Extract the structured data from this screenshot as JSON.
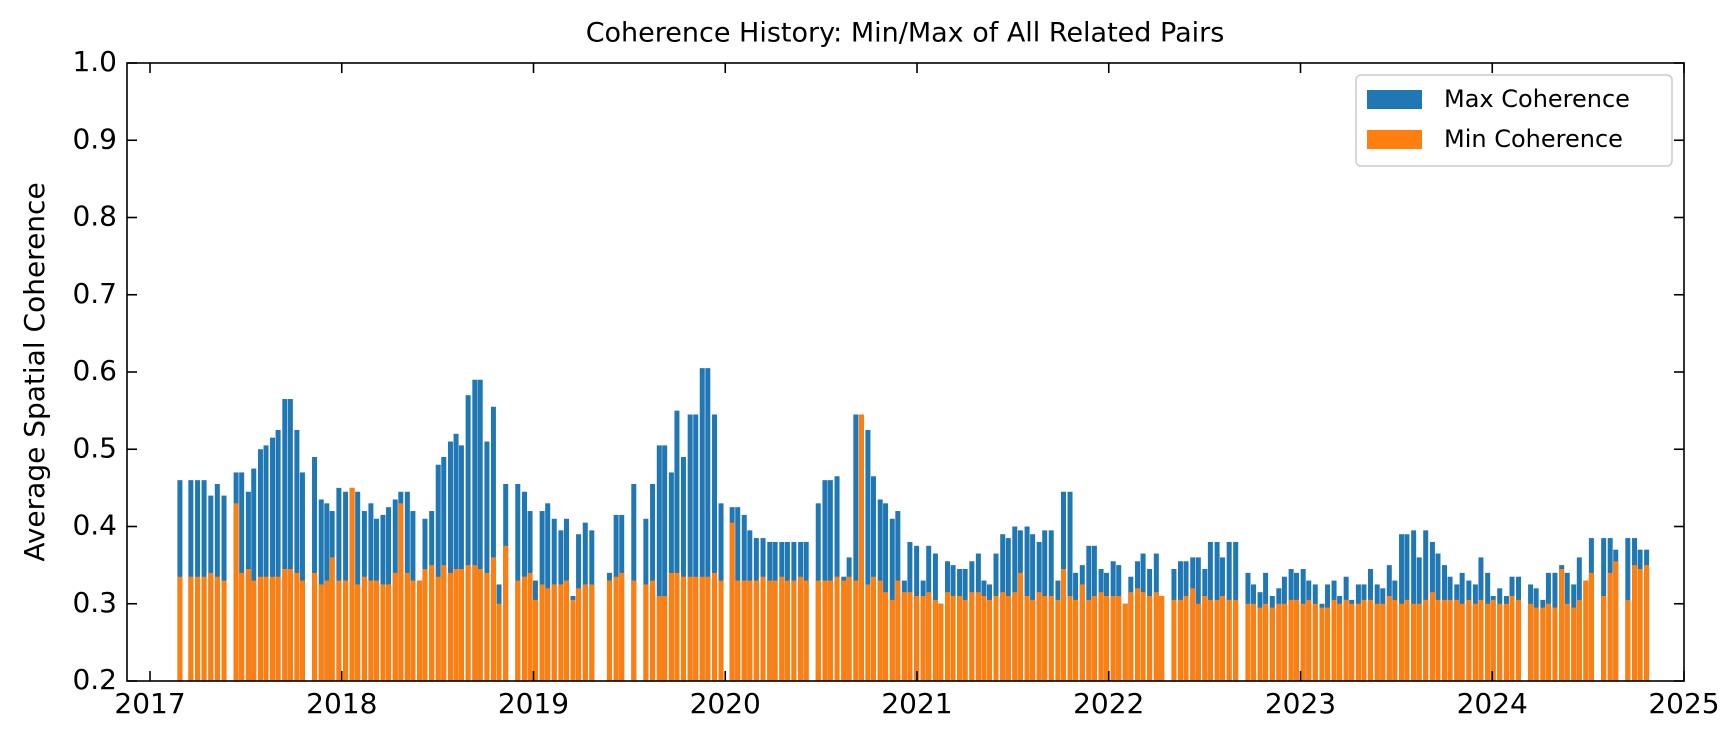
{
  "chart_data": {
    "type": "bar",
    "title": "Coherence History: Min/Max of All Related Pairs",
    "ylabel": "Average Spatial Coherence",
    "xlim": [
      2016.88,
      2025.0
    ],
    "xticks": [
      2017,
      2018,
      2019,
      2020,
      2021,
      2022,
      2023,
      2024,
      2025
    ],
    "ylim": [
      0.2,
      1.0
    ],
    "yticks": [
      0.2,
      0.3,
      0.4,
      0.5,
      0.6,
      0.7,
      0.8,
      0.9,
      {
        "value": 1.0,
        "label": "1.0"
      }
    ],
    "grid": false,
    "legend": "upper right",
    "x": [
      2017.156,
      2017.213,
      2017.248,
      2017.282,
      2017.317,
      2017.351,
      2017.386,
      2017.449,
      2017.478,
      2017.513,
      2017.541,
      2017.576,
      2017.605,
      2017.639,
      2017.668,
      2017.703,
      2017.732,
      2017.766,
      2017.795,
      2017.858,
      2017.893,
      2017.922,
      2017.95,
      2017.985,
      2018.02,
      2018.054,
      2018.083,
      2018.118,
      2018.152,
      2018.181,
      2018.215,
      2018.244,
      2018.279,
      2018.308,
      2018.342,
      2018.371,
      2018.406,
      2018.434,
      2018.469,
      2018.503,
      2018.532,
      2018.567,
      2018.596,
      2018.624,
      2018.659,
      2018.694,
      2018.722,
      2018.757,
      2018.791,
      2018.82,
      2018.855,
      2018.918,
      2018.953,
      2018.982,
      2019.01,
      2019.045,
      2019.074,
      2019.108,
      2019.143,
      2019.172,
      2019.206,
      2019.235,
      2019.27,
      2019.304,
      2019.396,
      2019.431,
      2019.46,
      2019.523,
      2019.586,
      2019.621,
      2019.656,
      2019.684,
      2019.719,
      2019.748,
      2019.782,
      2019.817,
      2019.846,
      2019.88,
      2019.909,
      2019.944,
      2019.978,
      2020.036,
      2020.065,
      2020.099,
      2020.128,
      2020.162,
      2020.197,
      2020.232,
      2020.26,
      2020.295,
      2020.324,
      2020.358,
      2020.393,
      2020.422,
      2020.485,
      2020.52,
      2020.548,
      2020.583,
      2020.618,
      2020.646,
      2020.681,
      2020.71,
      2020.744,
      2020.773,
      2020.808,
      2020.836,
      2020.871,
      2020.9,
      2020.934,
      2020.963,
      2020.998,
      2021.032,
      2021.061,
      2021.096,
      2021.124,
      2021.159,
      2021.188,
      2021.222,
      2021.251,
      2021.286,
      2021.32,
      2021.349,
      2021.378,
      2021.412,
      2021.447,
      2021.476,
      2021.51,
      2021.539,
      2021.574,
      2021.603,
      2021.637,
      2021.666,
      2021.7,
      2021.735,
      2021.764,
      2021.798,
      2021.827,
      2021.862,
      2021.896,
      2021.925,
      2021.96,
      2021.988,
      2022.023,
      2022.052,
      2022.086,
      2022.115,
      2022.15,
      2022.179,
      2022.213,
      2022.248,
      2022.276,
      2022.34,
      2022.374,
      2022.403,
      2022.438,
      2022.467,
      2022.501,
      2022.53,
      2022.565,
      2022.593,
      2022.628,
      2022.662,
      2022.726,
      2022.755,
      2022.789,
      2022.818,
      2022.853,
      2022.887,
      2022.916,
      2022.951,
      2022.979,
      2023.014,
      2023.043,
      2023.077,
      2023.112,
      2023.141,
      2023.175,
      2023.204,
      2023.238,
      2023.267,
      2023.302,
      2023.331,
      2023.365,
      2023.4,
      2023.429,
      2023.463,
      2023.492,
      2023.527,
      2023.555,
      2023.59,
      2023.619,
      2023.653,
      2023.688,
      2023.717,
      2023.751,
      2023.78,
      2023.815,
      2023.843,
      2023.878,
      2023.912,
      2023.941,
      2023.976,
      2024.005,
      2024.039,
      2024.074,
      2024.103,
      2024.137,
      2024.2,
      2024.229,
      2024.264,
      2024.293,
      2024.327,
      2024.362,
      2024.391,
      2024.425,
      2024.454,
      2024.488,
      2024.517,
      2024.581,
      2024.615,
      2024.644,
      2024.707,
      2024.742,
      2024.771,
      2024.805
    ],
    "series": [
      {
        "name": "Max Coherence",
        "color": "#1f77b4",
        "values": [
          0.46,
          0.46,
          0.46,
          0.46,
          0.44,
          0.455,
          0.44,
          0.47,
          0.47,
          0.445,
          0.475,
          0.5,
          0.505,
          0.515,
          0.525,
          0.565,
          0.565,
          0.525,
          0.47,
          0.49,
          0.435,
          0.43,
          0.42,
          0.45,
          0.445,
          0.45,
          0.445,
          0.42,
          0.43,
          0.41,
          0.415,
          0.425,
          0.435,
          0.445,
          0.445,
          0.42,
          0.33,
          0.41,
          0.42,
          0.48,
          0.49,
          0.51,
          0.52,
          0.505,
          0.57,
          0.59,
          0.59,
          0.51,
          0.555,
          0.325,
          0.455,
          0.455,
          0.445,
          0.42,
          0.33,
          0.42,
          0.43,
          0.41,
          0.395,
          0.41,
          0.31,
          0.39,
          0.405,
          0.395,
          0.34,
          0.415,
          0.415,
          0.455,
          0.41,
          0.455,
          0.505,
          0.505,
          0.47,
          0.55,
          0.49,
          0.545,
          0.545,
          0.605,
          0.605,
          0.545,
          0.43,
          0.425,
          0.425,
          0.415,
          0.395,
          0.385,
          0.385,
          0.38,
          0.38,
          0.38,
          0.38,
          0.38,
          0.38,
          0.38,
          0.43,
          0.46,
          0.46,
          0.465,
          0.335,
          0.36,
          0.545,
          0.545,
          0.525,
          0.465,
          0.435,
          0.43,
          0.41,
          0.42,
          0.33,
          0.38,
          0.375,
          0.33,
          0.375,
          0.365,
          0.3,
          0.355,
          0.35,
          0.345,
          0.345,
          0.355,
          0.365,
          0.33,
          0.325,
          0.365,
          0.39,
          0.385,
          0.4,
          0.395,
          0.4,
          0.39,
          0.38,
          0.395,
          0.395,
          0.33,
          0.445,
          0.445,
          0.34,
          0.35,
          0.375,
          0.375,
          0.345,
          0.34,
          0.355,
          0.35,
          0.3,
          0.335,
          0.355,
          0.365,
          0.345,
          0.365,
          0.31,
          0.345,
          0.355,
          0.355,
          0.36,
          0.36,
          0.345,
          0.38,
          0.38,
          0.36,
          0.38,
          0.38,
          0.34,
          0.325,
          0.315,
          0.34,
          0.31,
          0.32,
          0.335,
          0.345,
          0.34,
          0.345,
          0.33,
          0.325,
          0.3,
          0.325,
          0.33,
          0.31,
          0.335,
          0.305,
          0.325,
          0.325,
          0.345,
          0.325,
          0.32,
          0.35,
          0.33,
          0.39,
          0.39,
          0.395,
          0.36,
          0.395,
          0.38,
          0.365,
          0.35,
          0.335,
          0.325,
          0.34,
          0.33,
          0.325,
          0.36,
          0.34,
          0.31,
          0.32,
          0.31,
          0.335,
          0.335,
          0.325,
          0.32,
          0.305,
          0.34,
          0.34,
          0.35,
          0.34,
          0.325,
          0.36,
          0.33,
          0.385,
          0.385,
          0.385,
          0.37,
          0.385,
          0.385,
          0.37,
          0.37
        ]
      },
      {
        "name": "Min Coherence",
        "color": "#ff7f0e",
        "values": [
          0.335,
          0.335,
          0.335,
          0.335,
          0.34,
          0.335,
          0.33,
          0.43,
          0.34,
          0.345,
          0.33,
          0.335,
          0.335,
          0.335,
          0.335,
          0.345,
          0.345,
          0.34,
          0.33,
          0.34,
          0.325,
          0.33,
          0.36,
          0.33,
          0.33,
          0.45,
          0.325,
          0.335,
          0.33,
          0.33,
          0.325,
          0.325,
          0.34,
          0.43,
          0.34,
          0.33,
          0.33,
          0.345,
          0.35,
          0.335,
          0.35,
          0.34,
          0.345,
          0.345,
          0.35,
          0.35,
          0.345,
          0.34,
          0.36,
          0.3,
          0.375,
          0.33,
          0.335,
          0.34,
          0.305,
          0.325,
          0.32,
          0.325,
          0.325,
          0.33,
          0.305,
          0.32,
          0.325,
          0.325,
          0.33,
          0.335,
          0.34,
          0.33,
          0.325,
          0.33,
          0.31,
          0.31,
          0.34,
          0.34,
          0.335,
          0.335,
          0.335,
          0.335,
          0.335,
          0.34,
          0.33,
          0.405,
          0.33,
          0.33,
          0.33,
          0.33,
          0.335,
          0.33,
          0.33,
          0.335,
          0.33,
          0.33,
          0.335,
          0.33,
          0.33,
          0.33,
          0.33,
          0.335,
          0.33,
          0.335,
          0.33,
          0.545,
          0.325,
          0.335,
          0.33,
          0.315,
          0.305,
          0.33,
          0.315,
          0.315,
          0.31,
          0.31,
          0.315,
          0.305,
          0.3,
          0.315,
          0.31,
          0.31,
          0.305,
          0.315,
          0.315,
          0.31,
          0.305,
          0.31,
          0.315,
          0.31,
          0.315,
          0.34,
          0.31,
          0.305,
          0.315,
          0.31,
          0.31,
          0.305,
          0.345,
          0.31,
          0.305,
          0.325,
          0.305,
          0.31,
          0.315,
          0.31,
          0.31,
          0.31,
          0.3,
          0.315,
          0.32,
          0.315,
          0.31,
          0.315,
          0.31,
          0.305,
          0.305,
          0.31,
          0.32,
          0.3,
          0.31,
          0.305,
          0.305,
          0.31,
          0.305,
          0.305,
          0.3,
          0.3,
          0.295,
          0.3,
          0.295,
          0.3,
          0.3,
          0.305,
          0.305,
          0.3,
          0.305,
          0.3,
          0.295,
          0.295,
          0.305,
          0.3,
          0.305,
          0.3,
          0.3,
          0.305,
          0.305,
          0.3,
          0.3,
          0.31,
          0.305,
          0.3,
          0.305,
          0.3,
          0.3,
          0.305,
          0.315,
          0.305,
          0.305,
          0.305,
          0.305,
          0.3,
          0.305,
          0.3,
          0.305,
          0.3,
          0.305,
          0.3,
          0.3,
          0.31,
          0.305,
          0.3,
          0.295,
          0.295,
          0.3,
          0.295,
          0.345,
          0.3,
          0.295,
          0.305,
          0.33,
          0.34,
          0.31,
          0.34,
          0.355,
          0.305,
          0.35,
          0.345,
          0.35
        ]
      }
    ]
  }
}
